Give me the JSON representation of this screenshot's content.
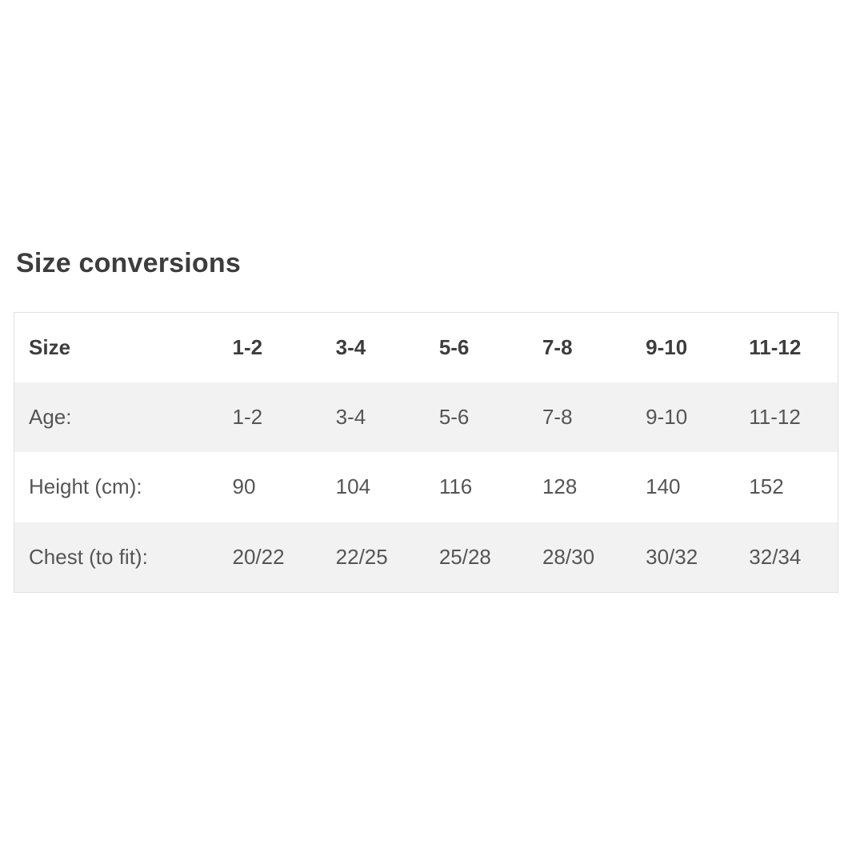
{
  "heading": {
    "text": "Size conversions"
  },
  "size_table": {
    "columns": [
      "Size",
      "1-2",
      "3-4",
      "5-6",
      "7-8",
      "9-10",
      "11-12"
    ],
    "rows": [
      {
        "label": "Age:",
        "values": [
          "1-2",
          "3-4",
          "5-6",
          "7-8",
          "9-10",
          "11-12"
        ]
      },
      {
        "label": "Height (cm):",
        "values": [
          "90",
          "104",
          "116",
          "128",
          "140",
          "152"
        ]
      },
      {
        "label": "Chest (to fit):",
        "values": [
          "20/22",
          "22/25",
          "25/28",
          "28/30",
          "30/32",
          "32/34"
        ]
      }
    ]
  },
  "colors": {
    "heading_text": "#3d3d3d",
    "header_text": "#3d3d3d",
    "body_text": "#555555",
    "stripe_bg": "#f2f2f2",
    "border": "#e0e0e0",
    "page_bg": "#ffffff"
  }
}
